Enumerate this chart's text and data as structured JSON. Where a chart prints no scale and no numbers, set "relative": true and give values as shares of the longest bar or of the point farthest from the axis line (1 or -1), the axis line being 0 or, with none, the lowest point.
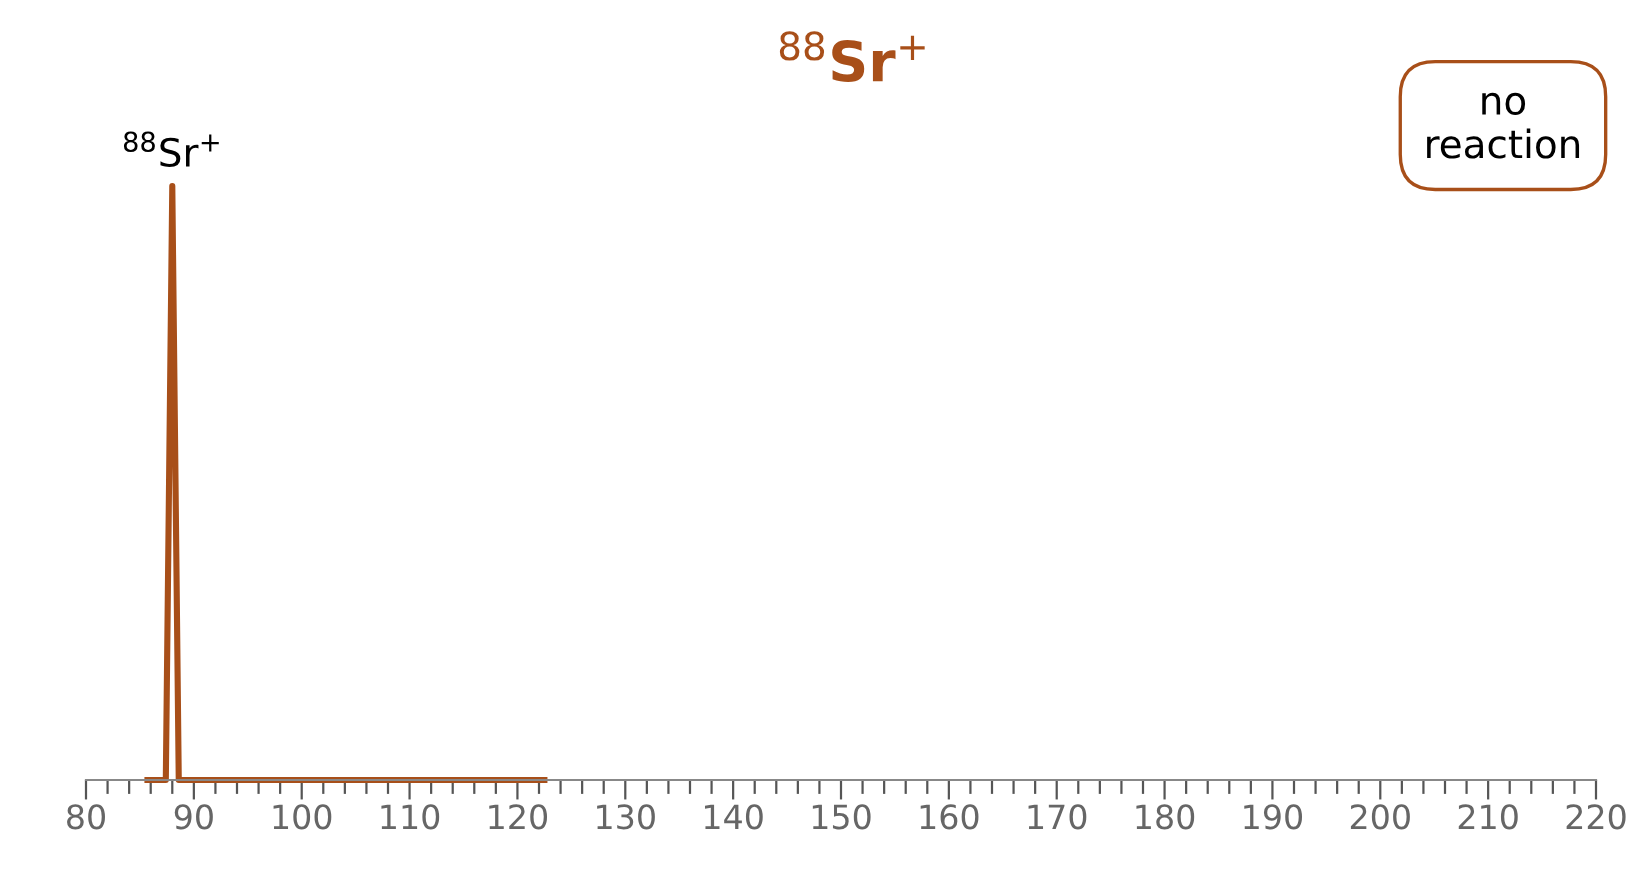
{
  "chart_data": {
    "type": "line",
    "title": "$^{88}$Sr$^{+}$",
    "relative": true,
    "x": [
      85.7,
      87.4,
      88.0,
      88.6,
      122.5
    ],
    "series": [
      {
        "color": "#a84f19",
        "values": [
          0,
          0,
          1,
          0,
          0
        ]
      }
    ],
    "annotations": [
      {
        "text": "$^{88}$Sr$^{+}$",
        "x": 88.0,
        "y": 1
      },
      "no reaction"
    ],
    "xlim": [
      80,
      220
    ],
    "xticks": [
      80,
      {
        "value": 82,
        "label": null
      },
      {
        "value": 84,
        "label": null
      },
      {
        "value": 86,
        "label": null
      },
      {
        "value": 88,
        "label": null
      },
      90,
      {
        "value": 92,
        "label": null
      },
      {
        "value": 94,
        "label": null
      },
      {
        "value": 96,
        "label": null
      },
      {
        "value": 98,
        "label": null
      },
      100,
      {
        "value": 102,
        "label": null
      },
      {
        "value": 104,
        "label": null
      },
      {
        "value": 106,
        "label": null
      },
      {
        "value": 108,
        "label": null
      },
      110,
      {
        "value": 112,
        "label": null
      },
      {
        "value": 114,
        "label": null
      },
      {
        "value": 116,
        "label": null
      },
      {
        "value": 118,
        "label": null
      },
      120,
      {
        "value": 122,
        "label": null
      },
      {
        "value": 124,
        "label": null
      },
      {
        "value": 126,
        "label": null
      },
      {
        "value": 128,
        "label": null
      },
      130,
      {
        "value": 132,
        "label": null
      },
      {
        "value": 134,
        "label": null
      },
      {
        "value": 136,
        "label": null
      },
      {
        "value": 138,
        "label": null
      },
      140,
      {
        "value": 142,
        "label": null
      },
      {
        "value": 144,
        "label": null
      },
      {
        "value": 146,
        "label": null
      },
      {
        "value": 148,
        "label": null
      },
      150,
      {
        "value": 152,
        "label": null
      },
      {
        "value": 154,
        "label": null
      },
      {
        "value": 156,
        "label": null
      },
      {
        "value": 158,
        "label": null
      },
      160,
      {
        "value": 162,
        "label": null
      },
      {
        "value": 164,
        "label": null
      },
      {
        "value": 166,
        "label": null
      },
      {
        "value": 168,
        "label": null
      },
      170,
      {
        "value": 172,
        "label": null
      },
      {
        "value": 174,
        "label": null
      },
      {
        "value": 176,
        "label": null
      },
      {
        "value": 178,
        "label": null
      },
      180,
      {
        "value": 182,
        "label": null
      },
      {
        "value": 184,
        "label": null
      },
      {
        "value": 186,
        "label": null
      },
      {
        "value": 188,
        "label": null
      },
      190,
      {
        "value": 192,
        "label": null
      },
      {
        "value": 194,
        "label": null
      },
      {
        "value": 196,
        "label": null
      },
      {
        "value": 198,
        "label": null
      },
      200,
      {
        "value": 202,
        "label": null
      },
      {
        "value": 204,
        "label": null
      },
      {
        "value": 206,
        "label": null
      },
      {
        "value": 208,
        "label": null
      },
      210,
      {
        "value": 212,
        "label": null
      },
      {
        "value": 214,
        "label": null
      },
      {
        "value": 216,
        "label": null
      },
      {
        "value": 218,
        "label": null
      },
      220
    ],
    "tick_labels": "x",
    "grid": false,
    "legend": false
  }
}
